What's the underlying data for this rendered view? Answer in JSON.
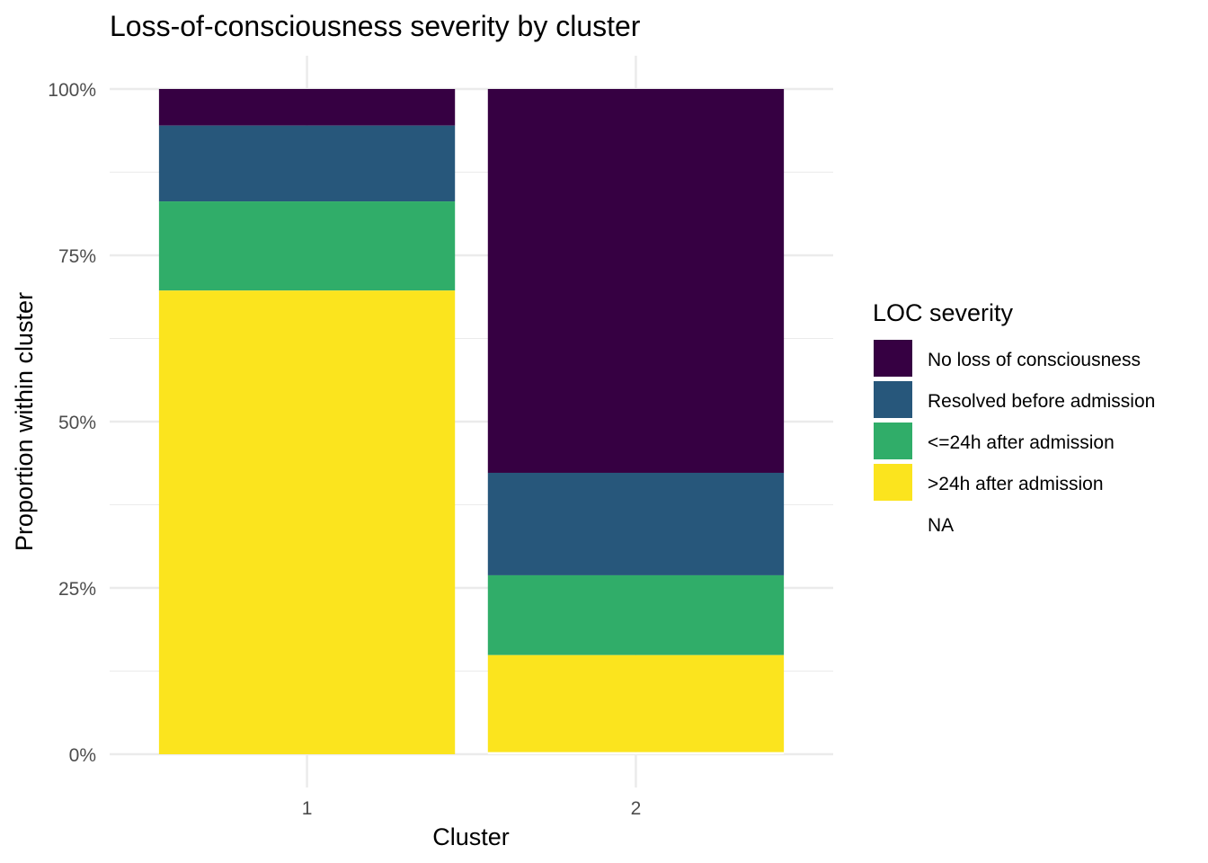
{
  "chart_data": {
    "type": "bar",
    "stacked": true,
    "title": "Loss-of-consciousness severity by cluster",
    "xlabel": "Cluster",
    "ylabel": "Proportion within cluster",
    "categories": [
      "1",
      "2"
    ],
    "ylim": [
      0,
      1
    ],
    "yticks": [
      0,
      0.25,
      0.5,
      0.75,
      1.0
    ],
    "ytick_labels": [
      "0%",
      "25%",
      "50%",
      "75%",
      "100%"
    ],
    "grid": true,
    "legend": {
      "title": "LOC severity",
      "placement": "right",
      "entries": [
        "No loss of consciousness",
        "Resolved before admission",
        "<=24h after admission",
        ">24h after admission",
        "NA"
      ]
    },
    "series": [
      {
        "name": "No loss of consciousness",
        "color": "#360042",
        "values": [
          0.055,
          0.577
        ]
      },
      {
        "name": "Resolved before admission",
        "color": "#27577b",
        "values": [
          0.114,
          0.154
        ]
      },
      {
        "name": "<=24h after admission",
        "color": "#30ad69",
        "values": [
          0.134,
          0.12
        ]
      },
      {
        "name": ">24h after admission",
        "color": "#fbe41e",
        "values": [
          0.697,
          0.146
        ]
      },
      {
        "name": "NA",
        "color": "#ffffff",
        "values": [
          0.0,
          0.003
        ]
      }
    ]
  }
}
